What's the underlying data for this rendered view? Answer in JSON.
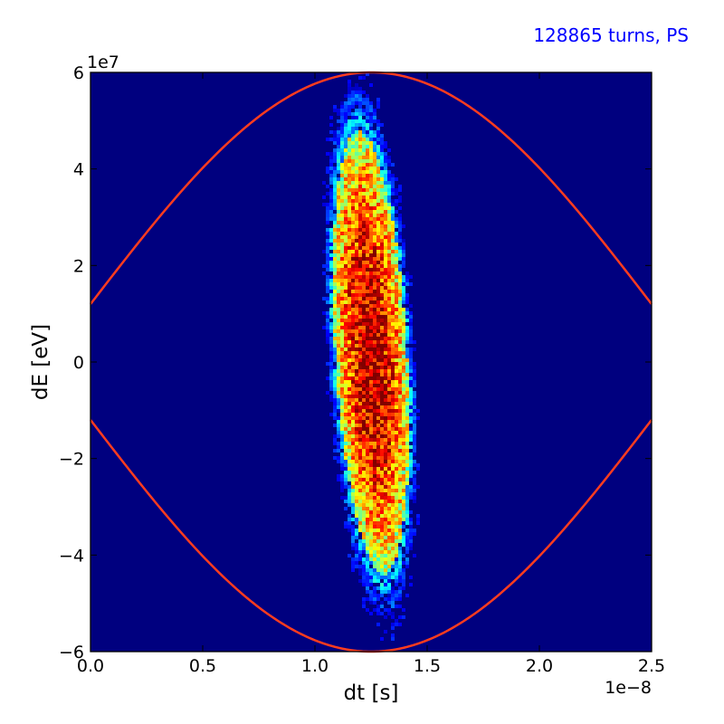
{
  "chart_data": {
    "type": "heatmap",
    "annotation": "128865 turns, PS",
    "xlabel": "dt [s]",
    "ylabel": "dE [eV]",
    "x_offset_label": "1e−8",
    "y_offset_label": "1e7",
    "xlim": [
      0.0,
      2.5
    ],
    "ylim": [
      -6,
      6
    ],
    "x_ticks": [
      0.0,
      0.5,
      1.0,
      1.5,
      2.0,
      2.5
    ],
    "x_tick_labels": [
      "0.0",
      "0.5",
      "1.0",
      "1.5",
      "2.0",
      "2.5"
    ],
    "y_ticks": [
      -6,
      -4,
      -2,
      0,
      2,
      4,
      6
    ],
    "y_tick_labels": [
      "−6",
      "−4",
      "−2",
      "0",
      "2",
      "4",
      "6"
    ],
    "grid": false,
    "colormap": "jet",
    "background_color": "#00007f",
    "bunch": {
      "center_dt": 1.25,
      "center_dE": 0.2,
      "dt_half_width": 0.16,
      "dE_half_height": 4.6,
      "tilt_dt_per_dE": -0.012
    },
    "separatrix": {
      "color": "#ff3c1e",
      "center_dt": 1.25,
      "upper_peak_dE": 6.0,
      "edge_dE": 3.6,
      "crossings_dt": [
        0.52,
        1.98
      ]
    }
  },
  "annotation_color": "#0000ff"
}
